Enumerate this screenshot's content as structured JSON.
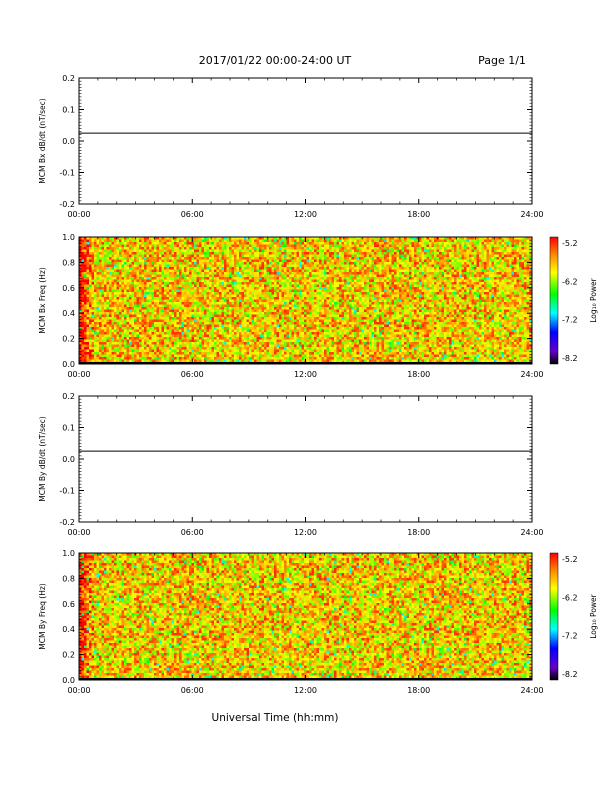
{
  "header": {
    "title": "2017/01/22  00:00-24:00 UT",
    "page": "Page 1/1"
  },
  "footer": {
    "xlabel": "Universal Time (hh:mm)"
  },
  "colorbar_ticks": [
    "-5.2",
    "-6.2",
    "-7.2",
    "-8.2"
  ],
  "colorbar_label": "Log₁₀ Power",
  "chart_data": [
    {
      "type": "line",
      "ylabel": "MCM Bx dB/dt (nT/sec)",
      "x_ticks": [
        "00:00",
        "06:00",
        "12:00",
        "18:00",
        "24:00"
      ],
      "y_ticks": [
        "0.2",
        "0.1",
        "0.0",
        "-0.1",
        "-0.2"
      ],
      "xlim": [
        0,
        24
      ],
      "ylim": [
        -0.2,
        0.2
      ],
      "series": [
        {
          "x": [
            0,
            24
          ],
          "y": [
            0.025,
            0.025
          ]
        }
      ]
    },
    {
      "type": "heatmap",
      "ylabel": "MCM Bx Freq (Hz)",
      "x_ticks": [
        "00:00",
        "06:00",
        "12:00",
        "18:00",
        "24:00"
      ],
      "y_ticks": [
        "1.0",
        "0.8",
        "0.6",
        "0.4",
        "0.2",
        "0.0"
      ],
      "xlim": [
        0,
        24
      ],
      "ylim": [
        0,
        1.0
      ],
      "colorbar_range": [
        -8.2,
        -5.2
      ],
      "colormap": [
        "#000000",
        "#6600cc",
        "#0000ff",
        "#00ffff",
        "#00ff00",
        "#ffff00",
        "#ff8800",
        "#ff0000"
      ]
    },
    {
      "type": "line",
      "ylabel": "MCM By dB/dt (nT/sec)",
      "x_ticks": [
        "00:00",
        "06:00",
        "12:00",
        "18:00",
        "24:00"
      ],
      "y_ticks": [
        "0.2",
        "0.1",
        "0.0",
        "-0.1",
        "-0.2"
      ],
      "xlim": [
        0,
        24
      ],
      "ylim": [
        -0.2,
        0.2
      ],
      "series": [
        {
          "x": [
            0,
            24
          ],
          "y": [
            0.025,
            0.025
          ]
        }
      ]
    },
    {
      "type": "heatmap",
      "ylabel": "MCM By Freq (Hz)",
      "x_ticks": [
        "00:00",
        "06:00",
        "12:00",
        "18:00",
        "24:00"
      ],
      "y_ticks": [
        "1.0",
        "0.8",
        "0.6",
        "0.4",
        "0.2",
        "0.0"
      ],
      "xlim": [
        0,
        24
      ],
      "ylim": [
        0,
        1.0
      ],
      "colorbar_range": [
        -8.2,
        -5.2
      ],
      "colormap": [
        "#000000",
        "#6600cc",
        "#0000ff",
        "#00ffff",
        "#00ff00",
        "#ffff00",
        "#ff8800",
        "#ff0000"
      ]
    }
  ]
}
